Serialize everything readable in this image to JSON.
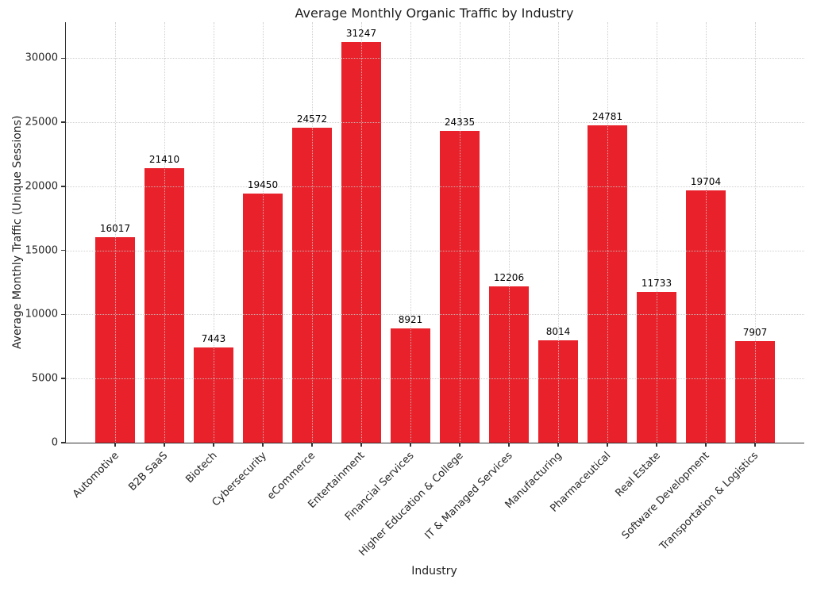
{
  "chart_data": {
    "type": "bar",
    "title": "Average Monthly Organic Traffic by Industry",
    "xlabel": "Industry",
    "ylabel": "Average Monthly Traffic (Unique Sessions)",
    "categories": [
      "Automotive",
      "B2B SaaS",
      "Biotech",
      "Cybersecurity",
      "eCommerce",
      "Entertainment",
      "Financial Services",
      "Higher Education & College",
      "IT & Managed Services",
      "Manufacturing",
      "Pharmaceutical",
      "Real Estate",
      "Software Development",
      "Transportation & Logistics"
    ],
    "values": [
      16017,
      21410,
      7443,
      19450,
      24572,
      31247,
      8921,
      24335,
      12206,
      8014,
      24781,
      11733,
      19704,
      7907
    ],
    "yticks": [
      0,
      5000,
      10000,
      15000,
      20000,
      25000,
      30000
    ],
    "ylim": [
      0,
      32809
    ],
    "grid": true,
    "grid_style": "dotted",
    "value_labels": true,
    "legend_position": "none"
  },
  "colors": {
    "bar": "#e8212a",
    "text": "#262626",
    "grid": "#cccccc",
    "spine": "#333333",
    "background": "#ffffff"
  }
}
